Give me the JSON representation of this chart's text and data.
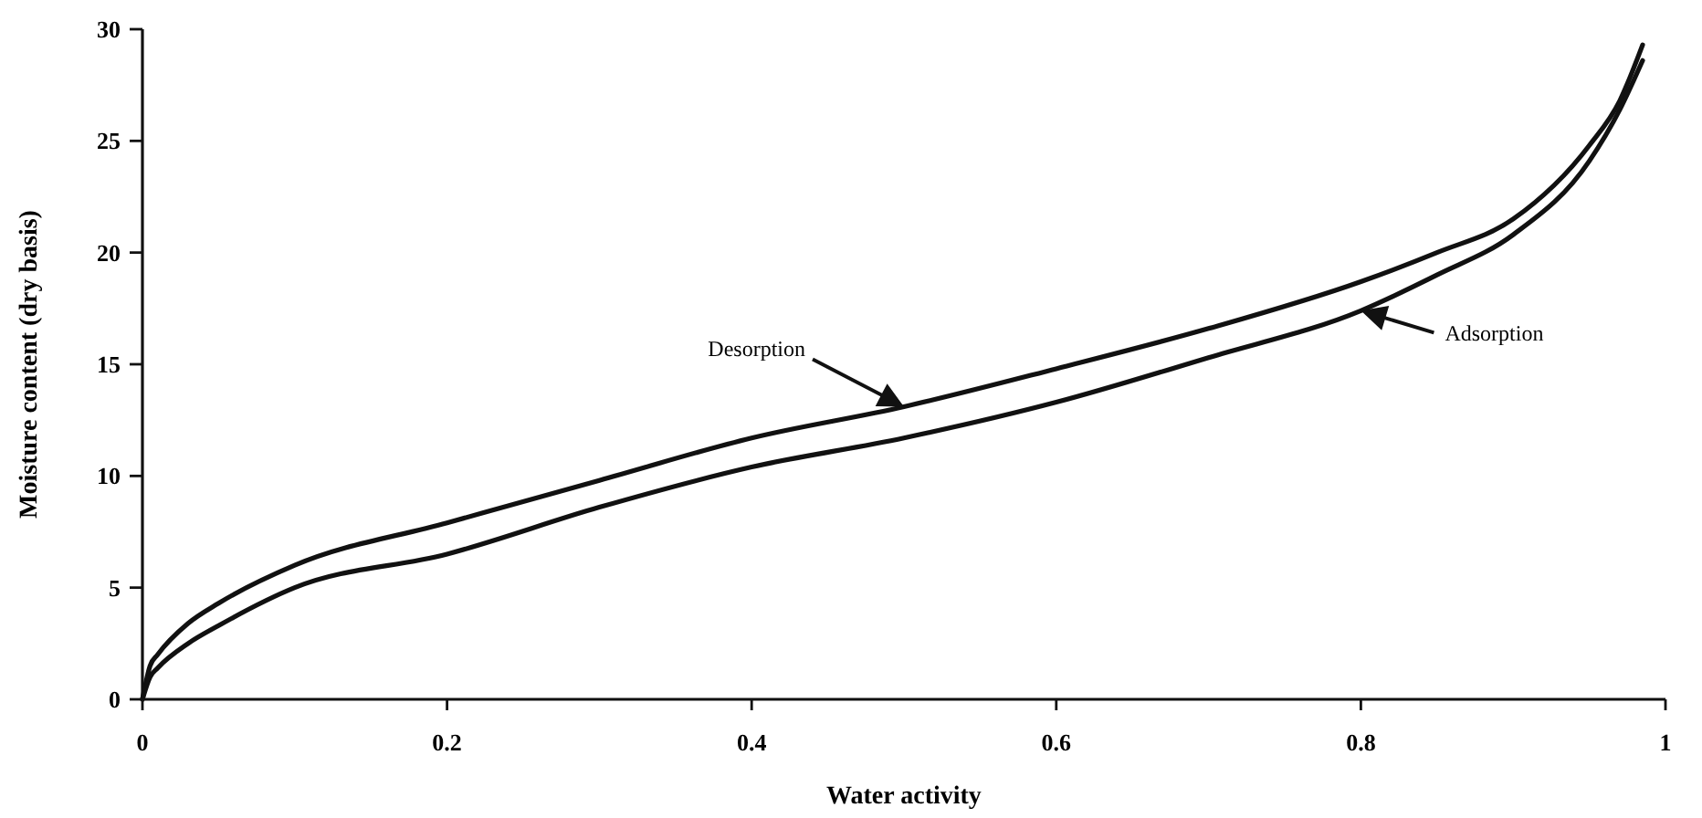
{
  "chart_data": {
    "type": "line",
    "xlabel": "Water activity",
    "ylabel": "Moisture content (dry basis)",
    "xlim": [
      0,
      1
    ],
    "ylim": [
      0,
      30
    ],
    "xticks": [
      0,
      0.2,
      0.4,
      0.6,
      0.8,
      1
    ],
    "yticks": [
      0,
      5,
      10,
      15,
      20,
      25,
      30
    ],
    "grid": false,
    "marker": "none",
    "line_style": "solid",
    "series": [
      {
        "color": "#111111",
        "x": [
          0,
          0.005,
          0.01,
          0.03,
          0.05,
          0.1,
          0.2,
          0.3,
          0.4,
          0.5,
          0.6,
          0.7,
          0.8,
          0.85,
          0.9,
          0.95,
          0.97,
          0.985
        ],
        "values": [
          0,
          1.5,
          2.0,
          3.4,
          4.3,
          6.0,
          7.9,
          9.8,
          11.7,
          13.1,
          14.8,
          16.6,
          18.7,
          20,
          21.5,
          24.8,
          26.8,
          29.3
        ]
      },
      {
        "color": "#111111",
        "x": [
          0,
          0.005,
          0.01,
          0.03,
          0.05,
          0.1,
          0.2,
          0.3,
          0.4,
          0.5,
          0.6,
          0.7,
          0.8,
          0.85,
          0.9,
          0.95,
          0.97,
          0.985
        ],
        "values": [
          0,
          1.0,
          1.4,
          2.5,
          3.3,
          5.0,
          6.5,
          8.6,
          10.4,
          11.7,
          13.3,
          15.3,
          17.4,
          19,
          20.8,
          24.1,
          26.4,
          28.6
        ]
      }
    ],
    "annotations": [
      "Desorption",
      "Adsorption"
    ]
  }
}
